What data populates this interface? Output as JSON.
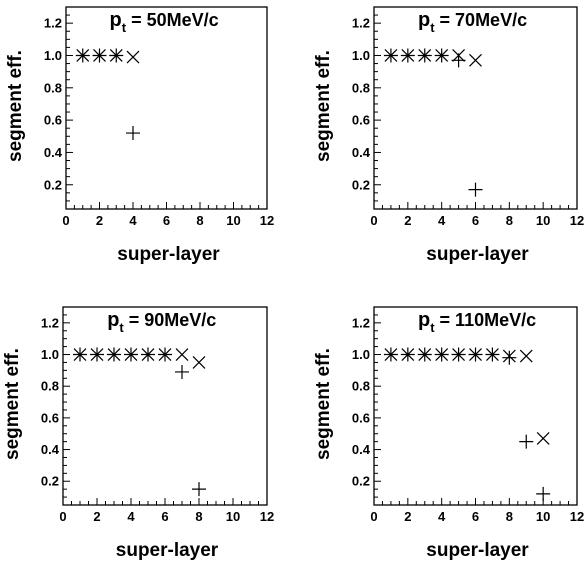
{
  "chart_data": [
    {
      "type": "scatter",
      "title_main": "p",
      "title_sub": "t",
      "title_rest": " = 50MeV/c",
      "xlabel": "super-layer",
      "ylabel": "segment eff.",
      "xlim": [
        0,
        12
      ],
      "ylim": [
        0.05,
        1.3
      ],
      "xticks": [
        "0",
        "2",
        "4",
        "6",
        "8",
        "10",
        "12"
      ],
      "yticks": [
        "0.2",
        "0.4",
        "0.6",
        "0.8",
        "1.0",
        "1.2"
      ],
      "grid": false,
      "series": [
        {
          "marker": "plus",
          "x": [
            1,
            2,
            3,
            4
          ],
          "y": [
            1.0,
            1.0,
            1.0,
            0.52
          ]
        },
        {
          "marker": "cross",
          "x": [
            1,
            2,
            3,
            4
          ],
          "y": [
            1.0,
            1.0,
            1.0,
            0.99
          ]
        }
      ]
    },
    {
      "type": "scatter",
      "title_main": "p",
      "title_sub": "t",
      "title_rest": " = 70MeV/c",
      "xlabel": "super-layer",
      "ylabel": "segment eff.",
      "xlim": [
        0,
        12
      ],
      "ylim": [
        0.05,
        1.3
      ],
      "xticks": [
        "0",
        "2",
        "4",
        "6",
        "8",
        "10",
        "12"
      ],
      "yticks": [
        "0.2",
        "0.4",
        "0.6",
        "0.8",
        "1.0",
        "1.2"
      ],
      "grid": false,
      "series": [
        {
          "marker": "plus",
          "x": [
            1,
            2,
            3,
            4,
            5,
            6
          ],
          "y": [
            1.0,
            1.0,
            1.0,
            1.0,
            0.97,
            0.17
          ]
        },
        {
          "marker": "cross",
          "x": [
            1,
            2,
            3,
            4,
            5,
            6
          ],
          "y": [
            1.0,
            1.0,
            1.0,
            1.0,
            1.0,
            0.97
          ]
        }
      ]
    },
    {
      "type": "scatter",
      "title_main": "p",
      "title_sub": "t",
      "title_rest": " = 90MeV/c",
      "xlabel": "super-layer",
      "ylabel": "segment eff.",
      "xlim": [
        0,
        12
      ],
      "ylim": [
        0.05,
        1.3
      ],
      "xticks": [
        "0",
        "2",
        "4",
        "6",
        "8",
        "10",
        "12"
      ],
      "yticks": [
        "0.2",
        "0.4",
        "0.6",
        "0.8",
        "1.0",
        "1.2"
      ],
      "grid": false,
      "series": [
        {
          "marker": "plus",
          "x": [
            1,
            2,
            3,
            4,
            5,
            6,
            7,
            8
          ],
          "y": [
            1.0,
            1.0,
            1.0,
            1.0,
            1.0,
            1.0,
            0.89,
            0.15
          ]
        },
        {
          "marker": "cross",
          "x": [
            1,
            2,
            3,
            4,
            5,
            6,
            7,
            8
          ],
          "y": [
            1.0,
            1.0,
            1.0,
            1.0,
            1.0,
            1.0,
            1.0,
            0.95
          ]
        }
      ]
    },
    {
      "type": "scatter",
      "title_main": "p",
      "title_sub": "t",
      "title_rest": " = 110MeV/c",
      "xlabel": "super-layer",
      "ylabel": "segment eff.",
      "xlim": [
        0,
        12
      ],
      "ylim": [
        0.05,
        1.3
      ],
      "xticks": [
        "0",
        "2",
        "4",
        "6",
        "8",
        "10",
        "12"
      ],
      "yticks": [
        "0.2",
        "0.4",
        "0.6",
        "0.8",
        "1.0",
        "1.2"
      ],
      "grid": false,
      "series": [
        {
          "marker": "plus",
          "x": [
            1,
            2,
            3,
            4,
            5,
            6,
            7,
            8,
            9,
            10
          ],
          "y": [
            1.0,
            1.0,
            1.0,
            1.0,
            1.0,
            1.0,
            1.0,
            0.98,
            0.45,
            0.12
          ]
        },
        {
          "marker": "cross",
          "x": [
            1,
            2,
            3,
            4,
            5,
            6,
            7,
            8,
            9,
            10
          ],
          "y": [
            1.0,
            1.0,
            1.0,
            1.0,
            1.0,
            1.0,
            1.0,
            0.99,
            0.99,
            0.47
          ]
        }
      ]
    }
  ]
}
